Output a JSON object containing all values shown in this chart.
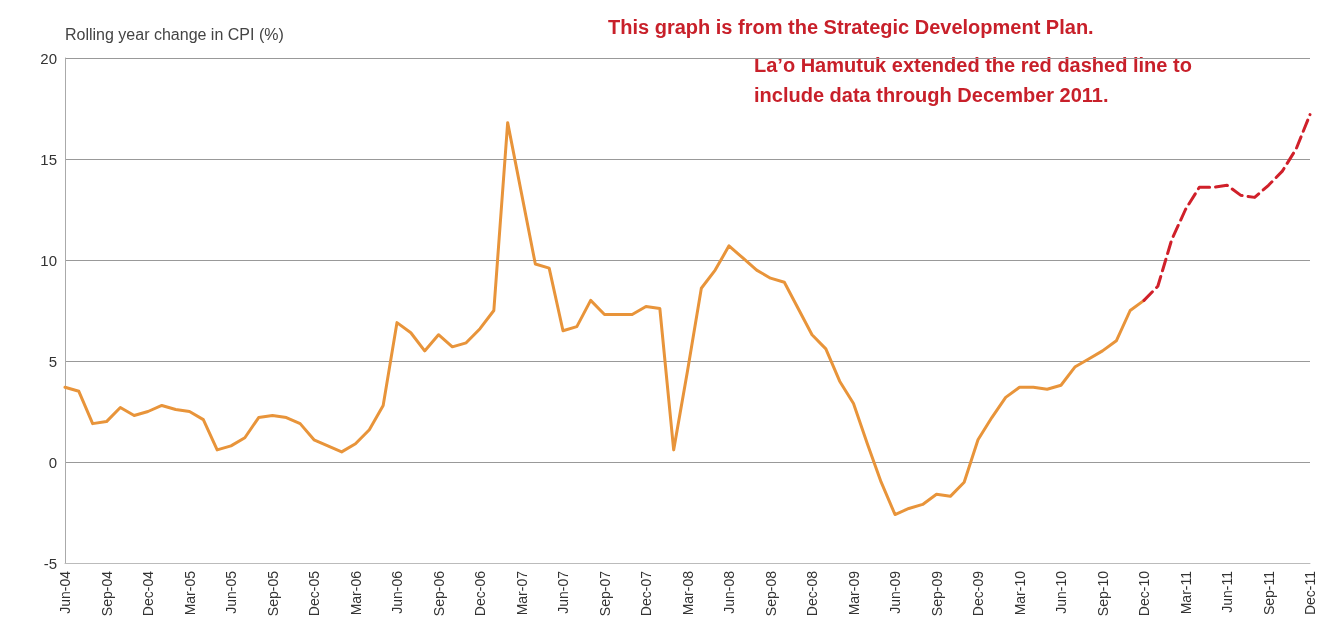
{
  "chart_data": {
    "type": "line",
    "ylabel": "Rolling year change in CPI (%)",
    "annotations": [
      "This graph is from the Strategic Development Plan.",
      "La’o Hamutuk extended the red dashed line to include data through December 2011."
    ],
    "categories": [
      "Jun-04",
      null,
      null,
      "Sep-04",
      null,
      null,
      "Dec-04",
      null,
      null,
      "Mar-05",
      null,
      null,
      "Jun-05",
      null,
      null,
      "Sep-05",
      null,
      null,
      "Dec-05",
      null,
      null,
      "Mar-06",
      null,
      null,
      "Jun-06",
      null,
      null,
      "Sep-06",
      null,
      null,
      "Dec-06",
      null,
      null,
      "Mar-07",
      null,
      null,
      "Jun-07",
      null,
      null,
      "Sep-07",
      null,
      null,
      "Dec-07",
      null,
      null,
      "Mar-08",
      null,
      null,
      "Jun-08",
      null,
      null,
      "Sep-08",
      null,
      null,
      "Dec-08",
      null,
      null,
      "Mar-09",
      null,
      null,
      "Jun-09",
      null,
      null,
      "Sep-09",
      null,
      null,
      "Dec-09",
      null,
      null,
      "Mar-10",
      null,
      null,
      "Jun-10",
      null,
      null,
      "Sep-10",
      null,
      null,
      "Dec-10",
      null,
      null,
      "Mar-11",
      null,
      null,
      "Jun-11",
      null,
      null,
      "Sep-11",
      null,
      null,
      "Dec-11"
    ],
    "series": [
      {
        "color": "#e8943a",
        "line_style": "solid",
        "values": [
          3.7,
          3.5,
          1.9,
          2.0,
          2.7,
          2.3,
          2.5,
          2.8,
          2.6,
          2.5,
          2.1,
          0.6,
          0.8,
          1.2,
          2.2,
          2.3,
          2.2,
          1.9,
          1.1,
          0.8,
          0.5,
          0.9,
          1.6,
          2.8,
          6.9,
          6.4,
          5.5,
          6.3,
          5.7,
          5.9,
          6.6,
          7.5,
          16.8,
          13.3,
          9.8,
          9.6,
          6.5,
          6.7,
          8.0,
          7.3,
          7.3,
          7.3,
          7.7,
          7.6,
          0.6,
          4.5,
          8.6,
          9.5,
          10.7,
          10.1,
          9.5,
          9.1,
          8.9,
          7.6,
          6.3,
          5.6,
          4.0,
          2.9,
          0.9,
          -1.0,
          -2.6,
          -2.3,
          -2.1,
          -1.6,
          -1.7,
          -1.0,
          1.1,
          2.2,
          3.2,
          3.7,
          3.7,
          3.6,
          3.8,
          4.7,
          5.1,
          5.5,
          6.0,
          7.5,
          8.0,
          null,
          null,
          null,
          null,
          null,
          null,
          null,
          null,
          null,
          null,
          null,
          null
        ]
      },
      {
        "color": "#d0202a",
        "line_style": "dashed",
        "values": [
          null,
          null,
          null,
          null,
          null,
          null,
          null,
          null,
          null,
          null,
          null,
          null,
          null,
          null,
          null,
          null,
          null,
          null,
          null,
          null,
          null,
          null,
          null,
          null,
          null,
          null,
          null,
          null,
          null,
          null,
          null,
          null,
          null,
          null,
          null,
          null,
          null,
          null,
          null,
          null,
          null,
          null,
          null,
          null,
          null,
          null,
          null,
          null,
          null,
          null,
          null,
          null,
          null,
          null,
          null,
          null,
          null,
          null,
          null,
          null,
          null,
          null,
          null,
          null,
          null,
          null,
          null,
          null,
          null,
          null,
          null,
          null,
          null,
          null,
          null,
          null,
          null,
          null,
          8.0,
          8.7,
          11.0,
          12.5,
          13.6,
          13.6,
          13.7,
          13.2,
          13.1,
          13.7,
          14.4,
          15.5,
          17.2
        ]
      }
    ],
    "ylim": [
      -5,
      20
    ],
    "yticks": [
      -5,
      0,
      5,
      10,
      15,
      20
    ],
    "grid": "y",
    "marker": "none"
  }
}
